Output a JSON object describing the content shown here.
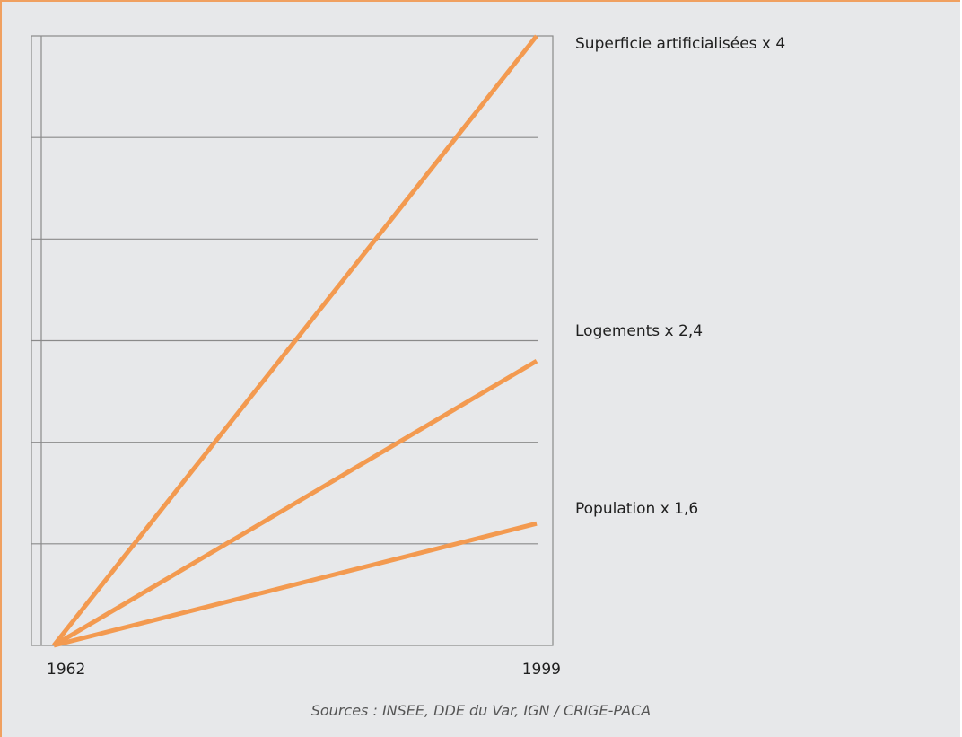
{
  "colors": {
    "background": "#e7e8ea",
    "frame_border": "#f0a060",
    "series_line": "#f39a50",
    "grid": "#8a8a8a"
  },
  "chart_data": {
    "type": "line",
    "title": "",
    "xlabel": "",
    "ylabel": "",
    "x": [
      1962,
      1999
    ],
    "x_tick_labels": [
      "1962",
      "1999"
    ],
    "ylim": [
      1,
      4
    ],
    "grid": true,
    "series": [
      {
        "name": "Superficie artificialisées x 4",
        "values": [
          1,
          4
        ]
      },
      {
        "name": "Logements x 2,4",
        "values": [
          1,
          2.4
        ]
      },
      {
        "name": "Population x 1,6",
        "values": [
          1,
          1.6
        ]
      }
    ]
  },
  "source": "Sources : INSEE, DDE du Var, IGN / CRIGE-PACA"
}
